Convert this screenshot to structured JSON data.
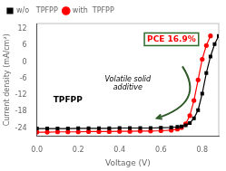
{
  "chart_data": {
    "type": "line",
    "xlabel": "Voltage (V)",
    "ylabel": "Current density (mA/cm²)",
    "xlim": [
      0.0,
      0.88
    ],
    "xticks": [
      {
        "value": 0.0,
        "label": "0.0"
      },
      {
        "value": 0.2,
        "label": "0.2"
      },
      {
        "value": 0.4,
        "label": "0.4"
      },
      {
        "value": 0.6,
        "label": "0.6"
      },
      {
        "value": 0.8,
        "label": "0.8"
      }
    ],
    "ylim": [
      -27,
      14
    ],
    "yticks": [
      12,
      6,
      0,
      -6,
      -12,
      -18,
      -24
    ],
    "grid": false,
    "legend": "upper left",
    "series": [
      {
        "name": "w/o   TPFPP",
        "color": "#000000",
        "marker": "square",
        "x": [
          0.0,
          0.05,
          0.1,
          0.15,
          0.2,
          0.25,
          0.3,
          0.35,
          0.4,
          0.45,
          0.5,
          0.55,
          0.6,
          0.65,
          0.68,
          0.7,
          0.72,
          0.74,
          0.76,
          0.78,
          0.8,
          0.82,
          0.84,
          0.86,
          0.88
        ],
        "values": [
          -24.2,
          -24.2,
          -24.2,
          -24.2,
          -24.1,
          -24.1,
          -24.1,
          -24.1,
          -24.0,
          -24.0,
          -24.0,
          -24.0,
          -23.9,
          -23.8,
          -23.6,
          -23.4,
          -23.0,
          -22.2,
          -20.5,
          -17.5,
          -11.5,
          -4.0,
          2.0,
          6.5,
          9.5
        ]
      },
      {
        "name": "with  TPFPP",
        "color": "#ff0000",
        "marker": "circle",
        "x": [
          0.0,
          0.05,
          0.1,
          0.15,
          0.2,
          0.25,
          0.3,
          0.35,
          0.4,
          0.45,
          0.5,
          0.55,
          0.6,
          0.65,
          0.68,
          0.7,
          0.72,
          0.74,
          0.76,
          0.78,
          0.8,
          0.82,
          0.84
        ],
        "values": [
          -25.5,
          -25.5,
          -25.4,
          -25.4,
          -25.4,
          -25.3,
          -25.3,
          -25.3,
          -25.2,
          -25.2,
          -25.1,
          -25.1,
          -25.0,
          -24.8,
          -24.4,
          -23.8,
          -22.5,
          -19.5,
          -14.0,
          -6.5,
          1.0,
          6.0,
          9.5
        ]
      }
    ],
    "annotations": [
      {
        "text": "PCE 16.9%",
        "color": "#ff0000",
        "box_color": "#2d6b2d"
      },
      {
        "text": "Volatile solid\nadditive",
        "arrow_color": "#2d5a27"
      },
      {
        "text": "TPFPP"
      }
    ]
  }
}
